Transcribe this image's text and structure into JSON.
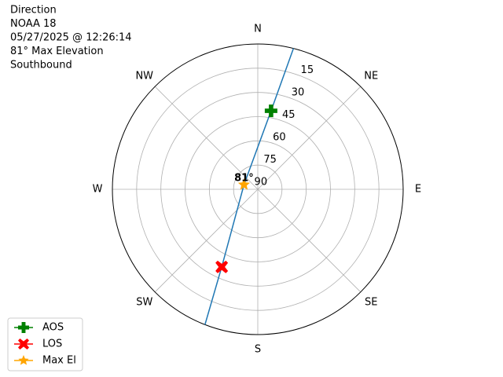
{
  "chart_data": {
    "type": "polar",
    "title_lines": [
      "Direction",
      "NOAA 18",
      "05/27/2025 @ 12:26:14",
      "81° Max Elevation",
      "Southbound"
    ],
    "rlim": [
      90,
      0
    ],
    "rticks": [
      90,
      75,
      60,
      45,
      30,
      15
    ],
    "thetaticks": [
      {
        "value": 0,
        "label": "N"
      },
      {
        "value": 45,
        "label": "NE"
      },
      {
        "value": 90,
        "label": "E"
      },
      {
        "value": 135,
        "label": "SE"
      },
      {
        "value": 180,
        "label": "S"
      },
      {
        "value": 225,
        "label": "SW"
      },
      {
        "value": 270,
        "label": "W"
      },
      {
        "value": 315,
        "label": "NW"
      }
    ],
    "grid": true,
    "track": {
      "color": "#1f77b4",
      "az": [
        14.2,
        9.6,
        288.4,
        204.9,
        201.3
      ],
      "el": [
        0,
        40.7,
        81,
        37,
        0
      ]
    },
    "series": [
      {
        "name": "AOS",
        "color": "#008000",
        "marker": "plus",
        "az": 9.6,
        "el": 40.7
      },
      {
        "name": "LOS",
        "color": "#ff0000",
        "marker": "x",
        "az": 204.9,
        "el": 37
      },
      {
        "name": "Max El",
        "color": "#ffa500",
        "marker": "star",
        "az": 288.4,
        "el": 81,
        "annotation": "81°"
      }
    ],
    "legend": "lower left"
  }
}
